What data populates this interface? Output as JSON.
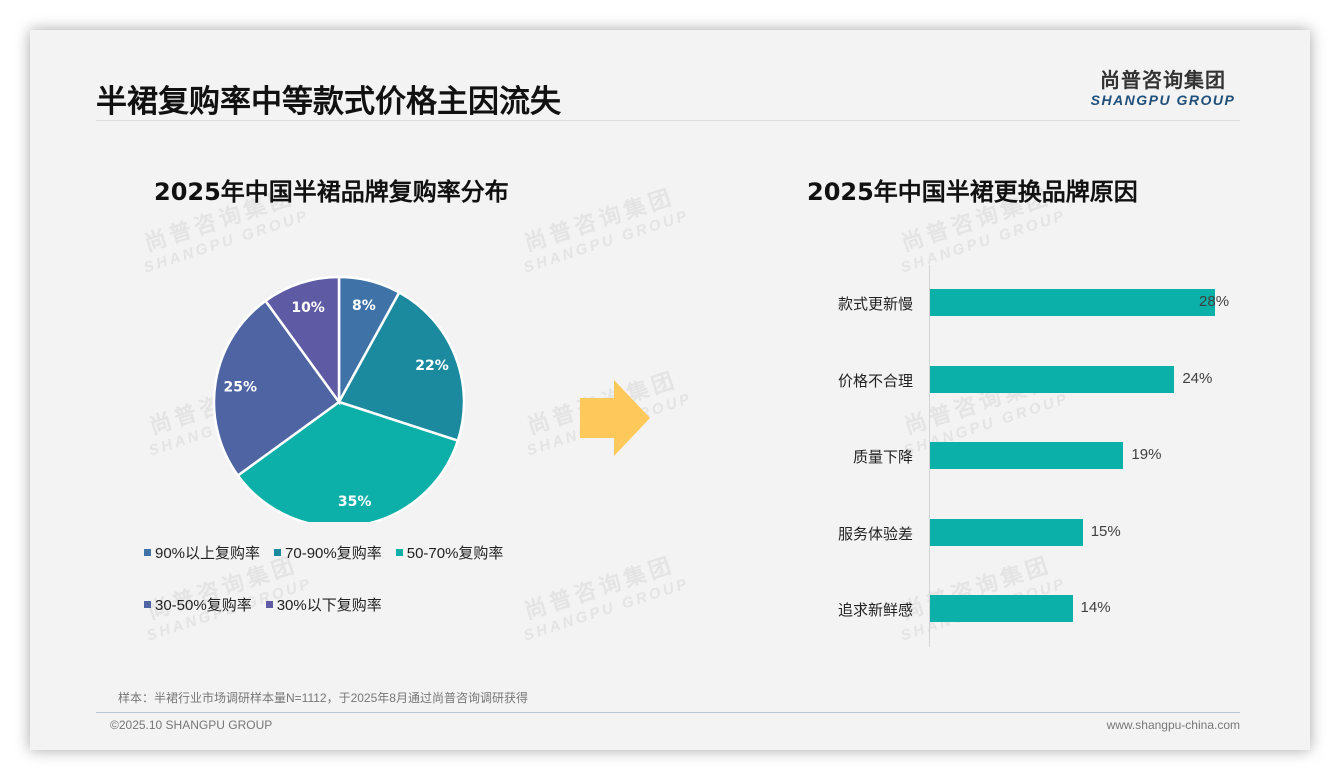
{
  "page": {
    "title": "半裙复购率中等款式价格主因流失",
    "logo": {
      "cn": "尚普咨询集团",
      "en": "SHANGPU GROUP"
    },
    "watermark": {
      "cn": "尚普咨询集团",
      "en": "SHANGPU GROUP"
    },
    "sample_note": "样本：半裙行业市场调研样本量N=1112，于2025年8月通过尚普咨询调研获得",
    "footer_left": "©2025.10 SHANGPU GROUP",
    "footer_right": "www.shangpu-china.com",
    "arrow_color": "#FFC85A"
  },
  "chart_data": [
    {
      "type": "pie",
      "title": "2025年中国半裙品牌复购率分布",
      "categories": [
        "90%以上复购率",
        "70-90%复购率",
        "50-70%复购率",
        "30-50%复购率",
        "30%以下复购率"
      ],
      "values": [
        8,
        22,
        35,
        25,
        10
      ],
      "labels": [
        "8%",
        "22%",
        "35%",
        "25%",
        "10%"
      ],
      "colors": [
        "#3F73A8",
        "#1B8A9E",
        "#0DB0A8",
        "#4E64A3",
        "#5E5BA4"
      ],
      "start_angle": "12 o'clock, clockwise",
      "legend_position": "bottom"
    },
    {
      "type": "bar",
      "orientation": "horizontal",
      "title": "2025年中国半裙更换品牌原因",
      "categories": [
        "款式更新慢",
        "价格不合理",
        "质量下降",
        "服务体验差",
        "追求新鲜感"
      ],
      "values": [
        28,
        24,
        19,
        15,
        14
      ],
      "labels": [
        "28%",
        "24%",
        "19%",
        "15%",
        "14%"
      ],
      "color": "#0BB0A8",
      "xlabel": "",
      "ylabel": "",
      "grid": false
    }
  ]
}
